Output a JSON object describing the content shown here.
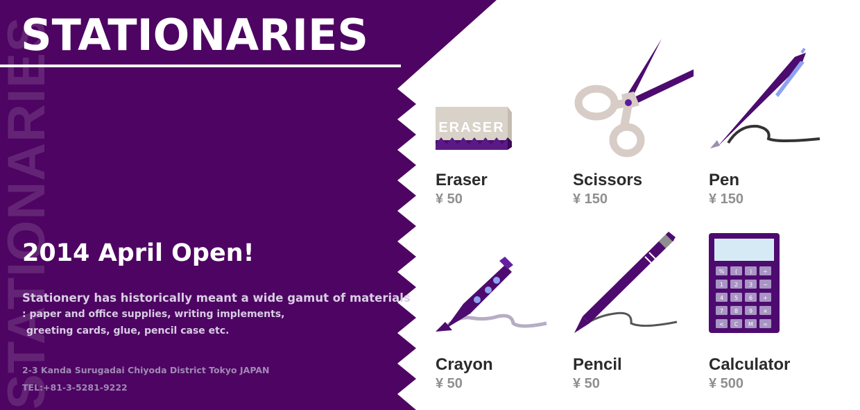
{
  "brand": {
    "title": "STATIONARIES",
    "watermark": "STATIONARIES"
  },
  "announcement": {
    "headline": "2014 April Open!",
    "description": [
      "Stationery has historically meant a wide gamut of materials",
      ": paper and office supplies, writing implements,",
      "greeting cards, glue, pencil case etc."
    ],
    "address": "2-3 Kanda Surugadai Chiyoda District Tokyo JAPAN",
    "phone": "TEL:+81-3-5281-9222"
  },
  "products": [
    {
      "name": "Eraser",
      "price": "¥ 50",
      "icon": "eraser-icon",
      "label": "ERASER"
    },
    {
      "name": "Scissors",
      "price": "¥ 150",
      "icon": "scissors-icon"
    },
    {
      "name": "Pen",
      "price": "¥ 150",
      "icon": "pen-icon"
    },
    {
      "name": "Crayon",
      "price": "¥ 50",
      "icon": "crayon-icon"
    },
    {
      "name": "Pencil",
      "price": "¥ 50",
      "icon": "pencil-icon"
    },
    {
      "name": "Calculator",
      "price": "¥ 500",
      "icon": "calculator-icon",
      "keys": [
        "%",
        "(",
        ")",
        "÷",
        "1",
        "2",
        "3",
        "−",
        "4",
        "5",
        "6",
        "+",
        "7",
        "8",
        "9",
        "×",
        "<",
        "C",
        "M",
        "="
      ]
    }
  ],
  "colors": {
    "brand_purple": "#4e0462",
    "item_purple": "#4d0b6f",
    "text_dark": "#2b2b2b",
    "price_gray": "#8f8f8f"
  }
}
